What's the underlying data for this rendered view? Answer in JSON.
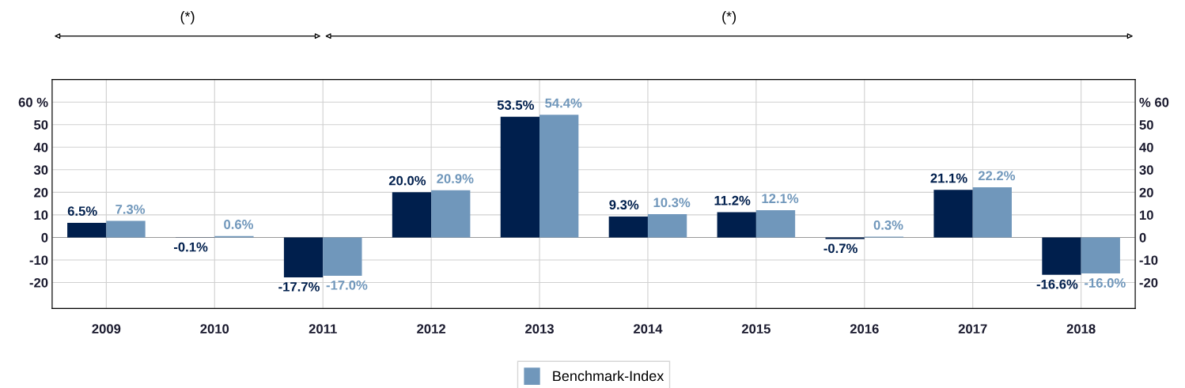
{
  "chart_data": {
    "type": "bar",
    "categories": [
      "2009",
      "2010",
      "2011",
      "2012",
      "2013",
      "2014",
      "2015",
      "2016",
      "2017",
      "2018"
    ],
    "series": [
      {
        "color": "#001f4d",
        "values": [
          6.5,
          -0.1,
          -17.7,
          20.0,
          53.5,
          9.3,
          11.2,
          -0.7,
          21.1,
          -16.6
        ],
        "value_labels": [
          "6.5%",
          "-0.1%",
          "-17.7%",
          "20.0%",
          "53.5%",
          "9.3%",
          "11.2%",
          "-0.7%",
          "21.1%",
          "-16.6%"
        ]
      },
      {
        "name": "Benchmark-Index",
        "color": "#7097bb",
        "values": [
          7.3,
          0.6,
          -17.0,
          20.9,
          54.4,
          10.3,
          12.1,
          0.3,
          22.2,
          -16.0
        ],
        "value_labels": [
          "7.3%",
          "0.6%",
          "-17.0%",
          "20.9%",
          "54.4%",
          "10.3%",
          "12.1%",
          "0.3%",
          "22.2%",
          "-16.0%"
        ]
      }
    ],
    "ylim": [
      -31.5,
      70
    ],
    "yticks": [
      {
        "value": 60,
        "label": "60 %"
      },
      50,
      40,
      30,
      20,
      10,
      0,
      -10,
      -20
    ],
    "y2lim": [
      -31.5,
      70
    ],
    "y2ticks": [
      {
        "value": 60,
        "label": "% 60"
      },
      50,
      40,
      30,
      20,
      10,
      0,
      -10,
      -20
    ],
    "annotations": [
      "(*)",
      "(*)"
    ],
    "grid": true,
    "legend": "bottom"
  }
}
